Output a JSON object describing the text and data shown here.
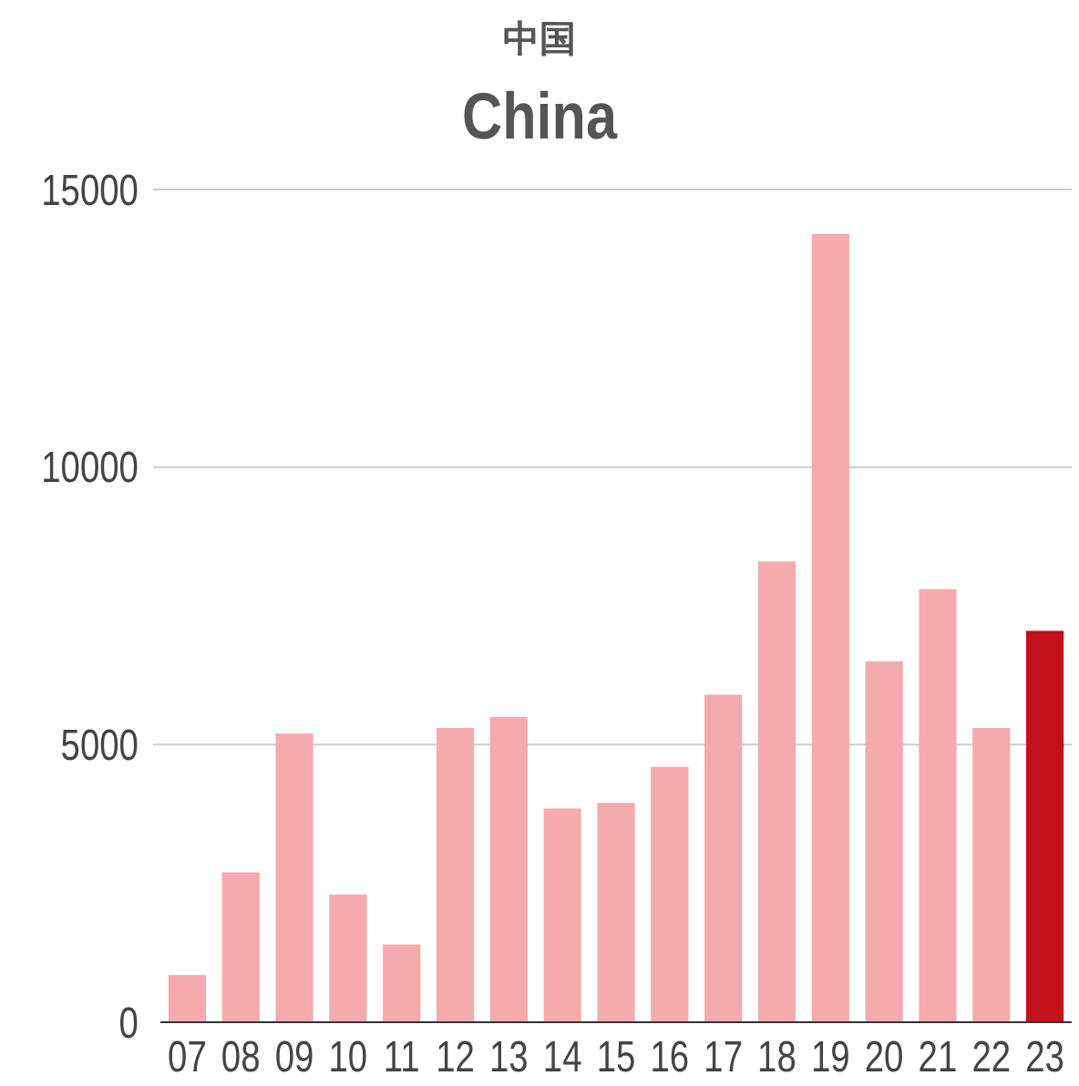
{
  "chart_data": {
    "type": "bar",
    "subtitle": "中国",
    "title": "China",
    "categories": [
      "07",
      "08",
      "09",
      "10",
      "11",
      "12",
      "13",
      "14",
      "15",
      "16",
      "17",
      "18",
      "19",
      "20",
      "21",
      "22",
      "23"
    ],
    "values": [
      850,
      2700,
      5200,
      2300,
      1400,
      5300,
      5500,
      3850,
      3950,
      4600,
      5900,
      8300,
      14200,
      6500,
      7800,
      5300,
      7050
    ],
    "colors": [
      "#f5aaad",
      "#f5aaad",
      "#f5aaad",
      "#f5aaad",
      "#f5aaad",
      "#f5aaad",
      "#f5aaad",
      "#f5aaad",
      "#f5aaad",
      "#f5aaad",
      "#f5aaad",
      "#f5aaad",
      "#f5aaad",
      "#f5aaad",
      "#f5aaad",
      "#f5aaad",
      "#c1121c"
    ],
    "ylim": [
      0,
      15000
    ],
    "yticks": [
      0,
      5000,
      10000,
      15000
    ],
    "grid": "y"
  }
}
